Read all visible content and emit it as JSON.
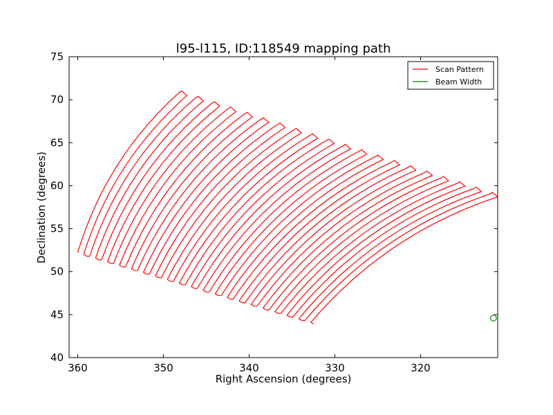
{
  "chart_data": {
    "type": "line",
    "title": "l95-l115, ID:118549 mapping path",
    "xlabel": "Right Ascension (degrees)",
    "ylabel": "Declination (degrees)",
    "xlim": [
      361,
      311
    ],
    "ylim": [
      40,
      75
    ],
    "x_inverted": true,
    "xticks": [
      360,
      350,
      340,
      330,
      320
    ],
    "yticks": [
      40,
      45,
      50,
      55,
      60,
      65,
      70,
      75
    ],
    "grid": false,
    "legend_position": "top-right",
    "series": [
      {
        "name": "Scan Pattern",
        "color": "#ff0000",
        "pattern": "boustrophedon",
        "num_legs": 40,
        "first_leg": {
          "start": [
            360.0,
            52.2
          ],
          "end": [
            348.2,
            70.8
          ]
        },
        "last_leg": {
          "start": [
            332.8,
            44.1
          ],
          "end": [
            311.0,
            58.7
          ]
        },
        "turn_offset_deg": [
          0.7,
          0.4
        ]
      },
      {
        "name": "Beam Width",
        "color": "#008000",
        "marker": "circle",
        "center": [
          311.5,
          44.6
        ],
        "diameter_deg": 0.7
      }
    ]
  }
}
